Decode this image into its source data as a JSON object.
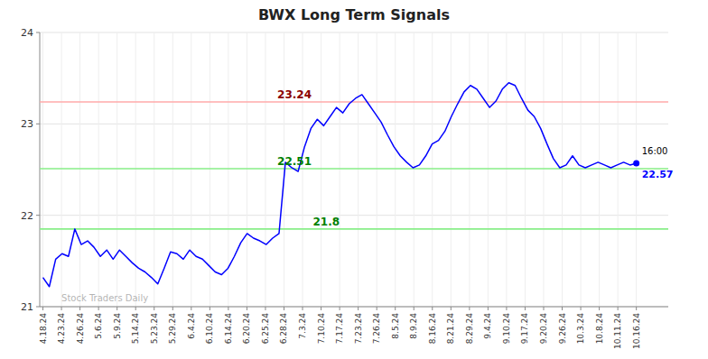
{
  "chart_data": {
    "type": "line",
    "title": "BWX Long Term Signals",
    "x": [
      0,
      1,
      2,
      3,
      4,
      5,
      6,
      7,
      8,
      9,
      10,
      11,
      12,
      13,
      14,
      15,
      16,
      17,
      18,
      19,
      20,
      21,
      22,
      23,
      24,
      25,
      26,
      27,
      28,
      29,
      30,
      31,
      32,
      33,
      34,
      35,
      36,
      37,
      38,
      39,
      40,
      41,
      42,
      43,
      44,
      45,
      46,
      47,
      48,
      49,
      50,
      51,
      52,
      53,
      54,
      55,
      56,
      57,
      58,
      59,
      60,
      61,
      62,
      63,
      64,
      65,
      66,
      67,
      68,
      69,
      70,
      71,
      72,
      73,
      74,
      75,
      76,
      77,
      78,
      79,
      80,
      81,
      82,
      83,
      84,
      85,
      86,
      87,
      88,
      89,
      90,
      91,
      92,
      93
    ],
    "series": [
      {
        "color": "blue",
        "values": [
          21.32,
          21.22,
          21.52,
          21.58,
          21.55,
          21.85,
          21.68,
          21.72,
          21.65,
          21.55,
          21.62,
          21.52,
          21.62,
          21.55,
          21.48,
          21.42,
          21.38,
          21.32,
          21.25,
          21.42,
          21.6,
          21.58,
          21.52,
          21.62,
          21.55,
          21.52,
          21.45,
          21.38,
          21.35,
          21.42,
          21.55,
          21.7,
          21.8,
          21.75,
          21.72,
          21.68,
          21.75,
          21.8,
          22.58,
          22.52,
          22.48,
          22.75,
          22.95,
          23.05,
          22.98,
          23.08,
          23.18,
          23.12,
          23.22,
          23.28,
          23.32,
          23.22,
          23.12,
          23.02,
          22.88,
          22.75,
          22.65,
          22.58,
          22.52,
          22.55,
          22.65,
          22.78,
          22.82,
          22.92,
          23.08,
          23.22,
          23.35,
          23.42,
          23.38,
          23.28,
          23.18,
          23.25,
          23.38,
          23.45,
          23.42,
          23.28,
          23.15,
          23.08,
          22.95,
          22.78,
          22.62,
          22.52,
          22.55,
          22.65,
          22.55,
          22.52,
          22.55,
          22.58,
          22.55,
          22.52,
          22.55,
          22.58,
          22.55,
          22.57
        ]
      }
    ],
    "xlim": [
      -0.5,
      98
    ],
    "xticks": [
      {
        "value": 0,
        "label": "4.18.24"
      },
      {
        "value": 2.90625,
        "label": "4.23.24"
      },
      {
        "value": 5.8125,
        "label": "4.26.24"
      },
      {
        "value": 8.71875,
        "label": "5.6.24"
      },
      {
        "value": 11.625,
        "label": "5.9.24"
      },
      {
        "value": 14.53125,
        "label": "5.14.24"
      },
      {
        "value": 17.4375,
        "label": "5.23.24"
      },
      {
        "value": 20.34375,
        "label": "5.29.24"
      },
      {
        "value": 23.25,
        "label": "6.4.24"
      },
      {
        "value": 26.15625,
        "label": "6.10.24"
      },
      {
        "value": 29.0625,
        "label": "6.14.24"
      },
      {
        "value": 31.96875,
        "label": "6.20.24"
      },
      {
        "value": 34.875,
        "label": "6.25.24"
      },
      {
        "value": 37.78125,
        "label": "6.28.24"
      },
      {
        "value": 40.6875,
        "label": "7.3.24"
      },
      {
        "value": 43.59375,
        "label": "7.10.24"
      },
      {
        "value": 46.5,
        "label": "7.17.24"
      },
      {
        "value": 49.40625,
        "label": "7.23.24"
      },
      {
        "value": 52.3125,
        "label": "7.26.24"
      },
      {
        "value": 55.21875,
        "label": "8.5.24"
      },
      {
        "value": 58.125,
        "label": "8.9.24"
      },
      {
        "value": 61.03125,
        "label": "8.16.24"
      },
      {
        "value": 63.9375,
        "label": "8.21.24"
      },
      {
        "value": 66.84375,
        "label": "8.29.24"
      },
      {
        "value": 69.75,
        "label": "9.4.24"
      },
      {
        "value": 72.65625,
        "label": "9.10.24"
      },
      {
        "value": 75.5625,
        "label": "9.17.24"
      },
      {
        "value": 78.46875,
        "label": "9.20.24"
      },
      {
        "value": 81.375,
        "label": "9.26.24"
      },
      {
        "value": 84.28125,
        "label": "10.3.24"
      },
      {
        "value": 87.1875,
        "label": "10.8.24"
      },
      {
        "value": 90.09375,
        "label": "10.11.24"
      },
      {
        "value": 93,
        "label": "10.16.24"
      }
    ],
    "ylim": [
      21.0,
      24.0
    ],
    "yticks": [
      21,
      22,
      23,
      24
    ],
    "grid": true,
    "reference_lines": [
      {
        "value": 23.24,
        "color": "#ffaaaa",
        "label": "23.24",
        "label_color": "darkred"
      },
      {
        "value": 22.51,
        "color": "#88ee88",
        "label": "22.51",
        "label_color": "green"
      },
      {
        "value": 21.85,
        "color": "#88ee88",
        "label": "21.8",
        "label_color": "green"
      }
    ],
    "last_point": {
      "time_label": "16:00",
      "value": 22.57,
      "value_label": "22.57"
    },
    "watermark": "Stock Traders Daily"
  }
}
